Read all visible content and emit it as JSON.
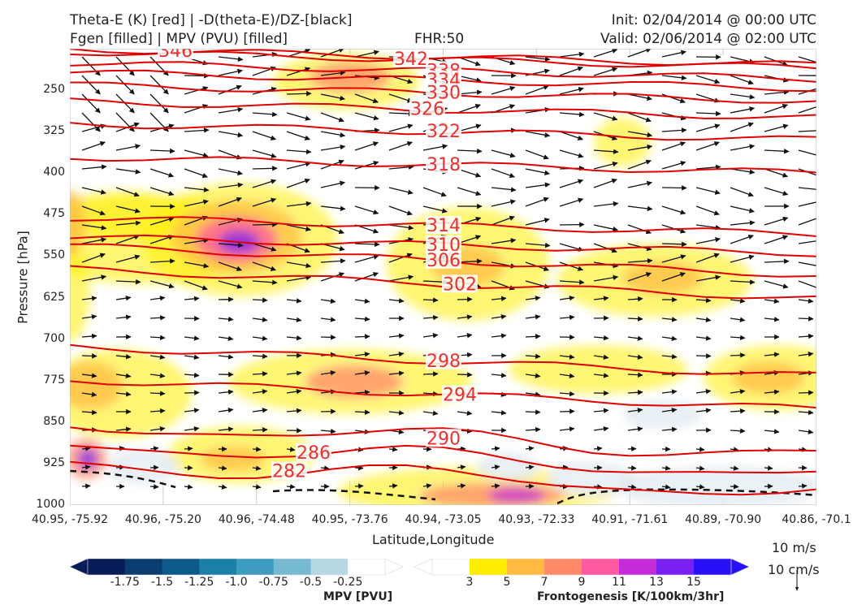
{
  "header": {
    "title_line1": "Theta-E (K) [red] | -D(theta-E)/DZ-[black]",
    "title_line2": "Fgen [filled] | MPV (PVU) [filled]",
    "fhr": "FHR:50",
    "init": "Init: 02/04/2014 @ 00:00 UTC",
    "valid": "Valid: 02/06/2014 @ 02:00 UTC"
  },
  "chart_data": {
    "type": "cross-section",
    "ylabel": "Pressure [hPa]",
    "xlabel": "Latitude,Longitude",
    "y_ticks": [
      250,
      325,
      400,
      475,
      550,
      625,
      700,
      775,
      850,
      925,
      1000
    ],
    "ylim": [
      1000,
      175
    ],
    "x_ticks": [
      "40.95, -75.92",
      "40.96, -75.20",
      "40.96, -74.48",
      "40.95, -73.76",
      "40.94, -73.05",
      "40.93, -72.33",
      "40.91, -71.61",
      "40.89, -70.90",
      "40.86, -70.1"
    ],
    "theta_e_contours": [
      {
        "label": "346",
        "pressure": 190
      },
      {
        "label": "342",
        "pressure": 195
      },
      {
        "label": "338",
        "pressure": 215
      },
      {
        "label": "334",
        "pressure": 232
      },
      {
        "label": "330",
        "pressure": 255
      },
      {
        "label": "326",
        "pressure": 285
      },
      {
        "label": "322",
        "pressure": 325
      },
      {
        "label": "318",
        "pressure": 385
      },
      {
        "label": "314",
        "pressure": 495
      },
      {
        "label": "310",
        "pressure": 530
      },
      {
        "label": "306",
        "pressure": 558
      },
      {
        "label": "302",
        "pressure": 600
      },
      {
        "label": "298",
        "pressure": 740
      },
      {
        "label": "294",
        "pressure": 800
      },
      {
        "label": "290",
        "pressure": 880
      },
      {
        "label": "286",
        "pressure": 915
      },
      {
        "label": "282",
        "pressure": 950
      }
    ],
    "reference_vector": {
      "horizontal": "10 m/s",
      "vertical": "10 cm/s"
    },
    "mpv_colorbar": {
      "label": "MPV [PVU]",
      "ticks": [
        "-1.75",
        "-1.5",
        "-1.25",
        "-1.0",
        "-0.75",
        "-0.5",
        "-0.25"
      ],
      "colors": [
        "#081d58",
        "#0c3d70",
        "#0d5a8a",
        "#1b7fa6",
        "#3d9cc0",
        "#78b9d2",
        "#b6d8e4",
        "#ffffff"
      ]
    },
    "fgen_colorbar": {
      "label": "Frontogenesis [K/100km/3hr]",
      "ticks": [
        "3",
        "5",
        "7",
        "9",
        "11",
        "13",
        "15"
      ],
      "colors": [
        "#ffffff",
        "#ffee00",
        "#ffbb44",
        "#ff8a6a",
        "#ff5aa0",
        "#c42cd8",
        "#7a20f0",
        "#2a10f8"
      ]
    }
  }
}
